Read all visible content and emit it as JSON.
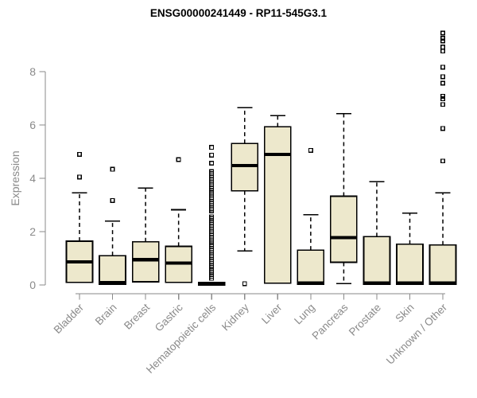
{
  "chart_data": {
    "type": "boxplot",
    "title": "ENSG00000241449 - RP11-545G3.1",
    "ylabel": "Expression",
    "xlabel": "",
    "ylim": [
      0,
      9.6
    ],
    "yticks": [
      0,
      2,
      4,
      6,
      8
    ],
    "grid": false,
    "legend": "none",
    "box_fill_color": "#EDE8CC",
    "box_stroke_color": "#000000",
    "median_color": "#000000",
    "axis_color": "#8a8a8a",
    "categories": [
      "Bladder",
      "Brain",
      "Breast",
      "Gastric",
      "Hematopoietic cells",
      "Kidney",
      "Liver",
      "Lung",
      "Pancreas",
      "Prostate",
      "Skin",
      "Unknown / Other"
    ],
    "series": [
      {
        "name": "Bladder",
        "low": 0.1,
        "q1": 0.1,
        "median": 0.87,
        "q3": 1.64,
        "high": 3.46,
        "outliers": [
          4.05,
          4.9
        ]
      },
      {
        "name": "Brain",
        "low": 0.02,
        "q1": 0.02,
        "median": 0.08,
        "q3": 1.1,
        "high": 2.4,
        "outliers": [
          3.17,
          4.34
        ]
      },
      {
        "name": "Breast",
        "low": 0.12,
        "q1": 0.12,
        "median": 0.95,
        "q3": 1.62,
        "high": 3.63,
        "outliers": []
      },
      {
        "name": "Gastric",
        "low": 0.1,
        "q1": 0.1,
        "median": 0.82,
        "q3": 1.45,
        "high": 2.82,
        "outliers": [
          4.7
        ]
      },
      {
        "name": "Hematopoietic cells",
        "low": 0.0,
        "q1": 0.0,
        "median": 0.03,
        "q3": 0.1,
        "high": 0.1,
        "outliers": [
          0.25,
          0.32,
          0.39,
          0.46,
          0.53,
          0.6,
          0.67,
          0.74,
          0.81,
          0.88,
          0.95,
          1.02,
          1.09,
          1.16,
          1.23,
          1.3,
          1.37,
          1.44,
          1.51,
          1.58,
          1.65,
          1.72,
          1.79,
          1.86,
          1.93,
          2.0,
          2.07,
          2.14,
          2.21,
          2.28,
          2.35,
          2.42,
          2.49,
          2.56,
          2.78,
          2.85,
          2.92,
          2.99,
          3.06,
          3.13,
          3.2,
          3.27,
          3.34,
          3.41,
          3.48,
          3.55,
          3.62,
          3.69,
          3.76,
          3.83,
          3.9,
          3.97,
          4.04,
          4.11,
          4.18,
          4.25,
          4.57,
          4.87,
          5.16
        ]
      },
      {
        "name": "Kidney",
        "low": 1.28,
        "q1": 3.53,
        "median": 4.48,
        "q3": 5.31,
        "high": 6.65,
        "outliers": [
          0.05
        ]
      },
      {
        "name": "Liver",
        "low": 0.07,
        "q1": 0.07,
        "median": 4.9,
        "q3": 5.93,
        "high": 6.35,
        "outliers": []
      },
      {
        "name": "Lung",
        "low": 0.02,
        "q1": 0.02,
        "median": 0.07,
        "q3": 1.31,
        "high": 2.63,
        "outliers": [
          5.05
        ]
      },
      {
        "name": "Pancreas",
        "low": 0.05,
        "q1": 0.85,
        "median": 1.78,
        "q3": 3.33,
        "high": 6.43,
        "outliers": []
      },
      {
        "name": "Prostate",
        "low": 0.02,
        "q1": 0.02,
        "median": 0.07,
        "q3": 1.81,
        "high": 3.87,
        "outliers": []
      },
      {
        "name": "Skin",
        "low": 0.02,
        "q1": 0.02,
        "median": 0.07,
        "q3": 1.53,
        "high": 2.7,
        "outliers": []
      },
      {
        "name": "Unknown / Other",
        "low": 0.02,
        "q1": 0.02,
        "median": 0.07,
        "q3": 1.5,
        "high": 3.46,
        "outliers": [
          4.65,
          5.87,
          6.77,
          6.98,
          7.08,
          7.57,
          7.81,
          8.17,
          8.77,
          8.92,
          9.15,
          9.25,
          9.45
        ]
      }
    ]
  }
}
